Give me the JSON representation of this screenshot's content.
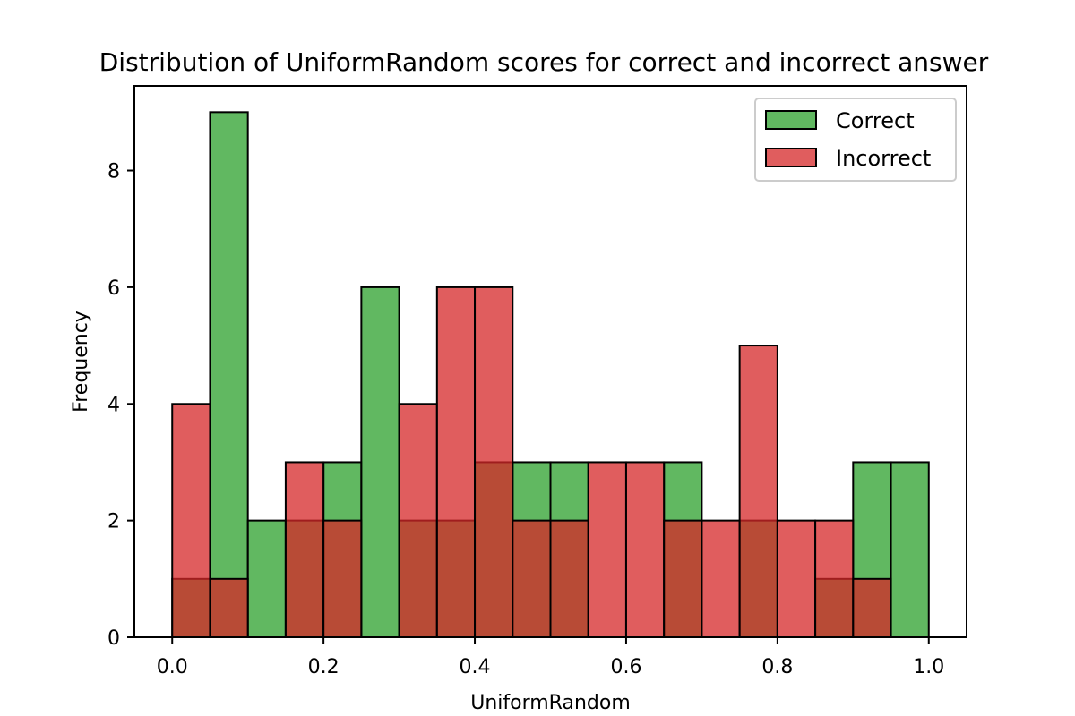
{
  "chart_data": {
    "type": "bar",
    "title": "Distribution of UniformRandom scores for correct and incorrect answer",
    "xlabel": "UniformRandom",
    "ylabel": "Frequency",
    "xlim": [
      -0.05,
      1.05
    ],
    "ylim": [
      0,
      9.45
    ],
    "xticks": [
      "0.0",
      "0.2",
      "0.4",
      "0.6",
      "0.8",
      "1.0"
    ],
    "yticks": [
      "0",
      "2",
      "4",
      "6",
      "8"
    ],
    "bin_edges": [
      0.0,
      0.05,
      0.1,
      0.15,
      0.2,
      0.25,
      0.3,
      0.35,
      0.4,
      0.45,
      0.5,
      0.55,
      0.6,
      0.65,
      0.7,
      0.75,
      0.8,
      0.85,
      0.9,
      0.95,
      1.0
    ],
    "legend_position": "top-right",
    "series": [
      {
        "name": "Correct",
        "color": "#2ca02c",
        "values": [
          1,
          9,
          2,
          2,
          3,
          6,
          2,
          2,
          3,
          3,
          3,
          0,
          0,
          3,
          0,
          2,
          0,
          1,
          3,
          3
        ]
      },
      {
        "name": "Incorrect",
        "color": "#d62728",
        "values": [
          4,
          1,
          0,
          3,
          2,
          0,
          4,
          6,
          6,
          2,
          2,
          3,
          3,
          2,
          2,
          5,
          2,
          2,
          1,
          0
        ]
      }
    ]
  }
}
